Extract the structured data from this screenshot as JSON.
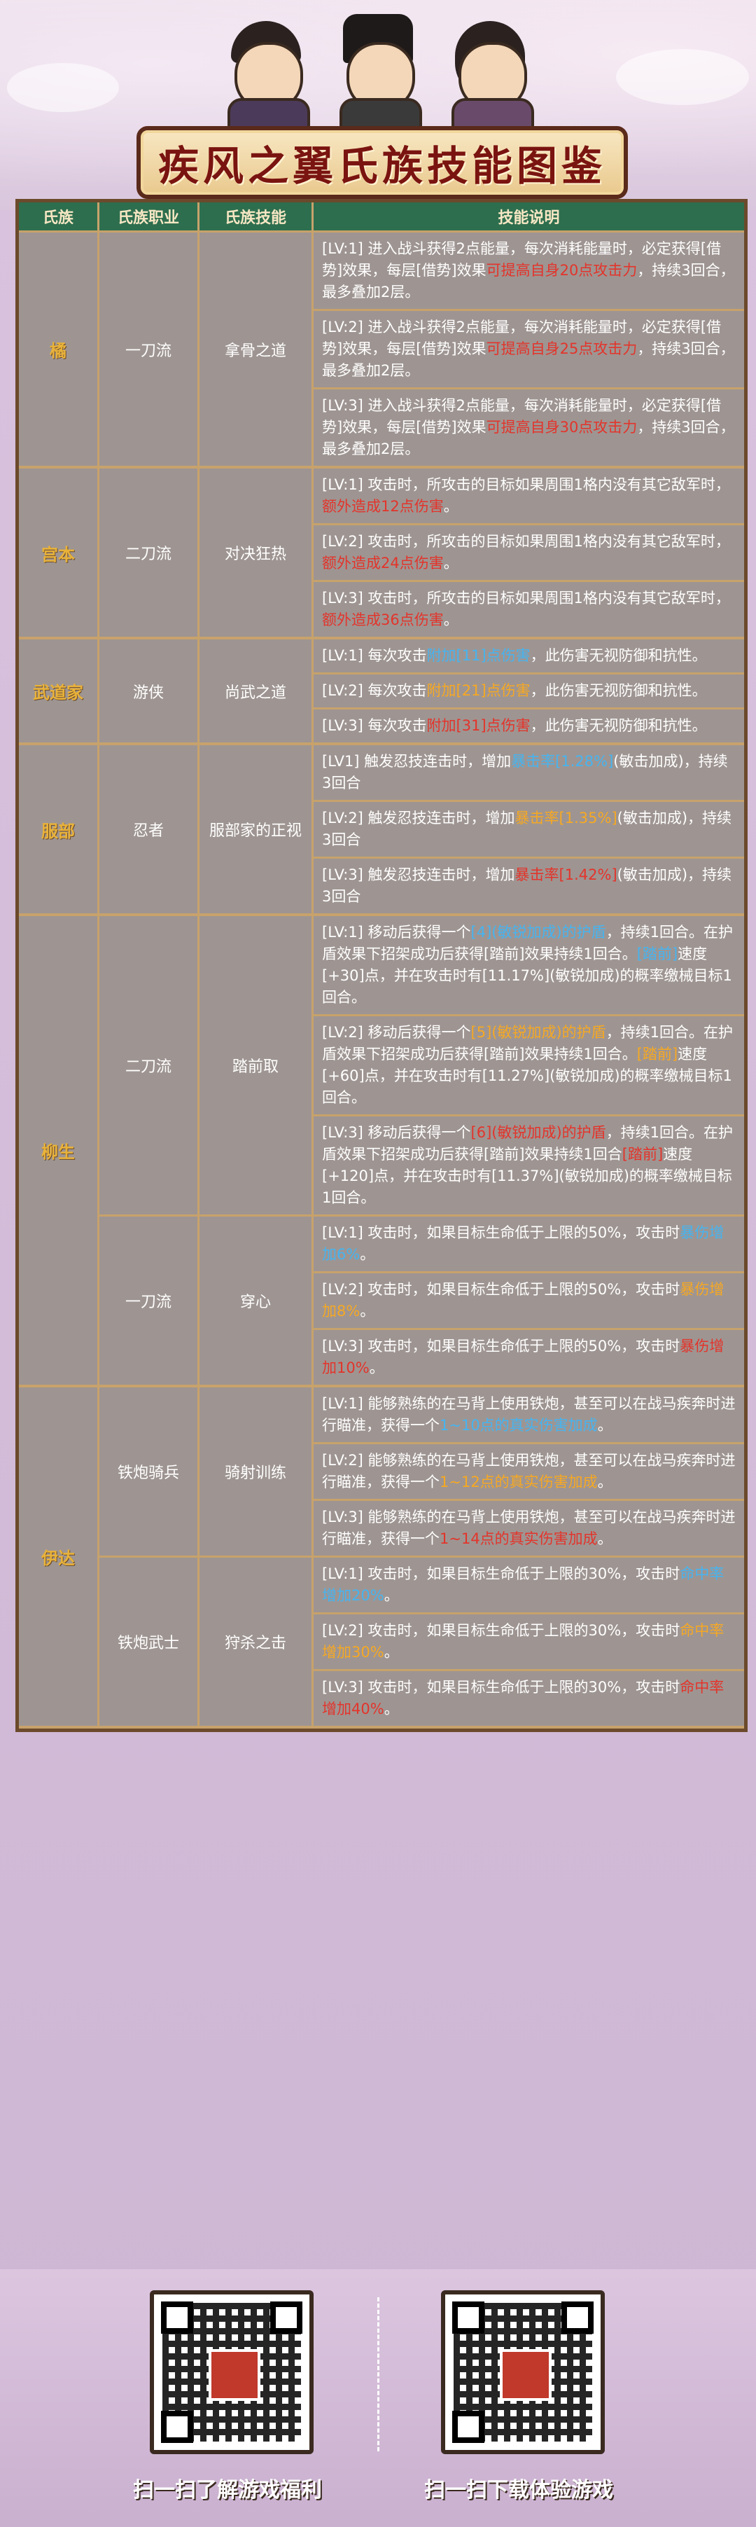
{
  "title": "疾风之翼氏族技能图鉴",
  "headers": [
    "氏族",
    "氏族职业",
    "氏族技能",
    "技能说明"
  ],
  "clans": [
    {
      "name": "橘",
      "groups": [
        {
          "job": "一刀流",
          "skill": "拿骨之道",
          "levels": [
            [
              {
                "t": "[LV:1] 进入战斗获得2点能量，每次消耗能量时，必定获得[借势]效果，每层[借势]效果"
              },
              {
                "t": "可提高自身20点攻击力",
                "c": "r"
              },
              {
                "t": "，持续3回合，最多叠加2层。"
              }
            ],
            [
              {
                "t": "[LV:2] 进入战斗获得2点能量，每次消耗能量时，必定获得[借势]效果，每层[借势]效果"
              },
              {
                "t": "可提高自身25点攻击力",
                "c": "r"
              },
              {
                "t": "，持续3回合，最多叠加2层。"
              }
            ],
            [
              {
                "t": "[LV:3] 进入战斗获得2点能量，每次消耗能量时，必定获得[借势]效果，每层[借势]效果"
              },
              {
                "t": "可提高自身30点攻击力",
                "c": "r"
              },
              {
                "t": "，持续3回合，最多叠加2层。"
              }
            ]
          ]
        }
      ]
    },
    {
      "name": "宫本",
      "groups": [
        {
          "job": "二刀流",
          "skill": "对决狂热",
          "levels": [
            [
              {
                "t": "[LV:1] 攻击时，所攻击的目标如果周围1格内没有其它敌军时，"
              },
              {
                "t": "额外造成12点伤害",
                "c": "r"
              },
              {
                "t": "。"
              }
            ],
            [
              {
                "t": "[LV:2] 攻击时，所攻击的目标如果周围1格内没有其它敌军时，"
              },
              {
                "t": "额外造成24点伤害",
                "c": "r"
              },
              {
                "t": "。"
              }
            ],
            [
              {
                "t": "[LV:3] 攻击时，所攻击的目标如果周围1格内没有其它敌军时，"
              },
              {
                "t": "额外造成36点伤害",
                "c": "r"
              },
              {
                "t": "。"
              }
            ]
          ]
        }
      ]
    },
    {
      "name": "武道家",
      "groups": [
        {
          "job": "游侠",
          "skill": "尚武之道",
          "levels": [
            [
              {
                "t": "[LV:1] 每次攻击"
              },
              {
                "t": "附加[11]点伤害",
                "c": "b"
              },
              {
                "t": "，此伤害无视防御和抗性。"
              }
            ],
            [
              {
                "t": "[LV:2] 每次攻击"
              },
              {
                "t": "附加[21]点伤害",
                "c": "o"
              },
              {
                "t": "，此伤害无视防御和抗性。"
              }
            ],
            [
              {
                "t": "[LV:3] 每次攻击"
              },
              {
                "t": "附加[31]点伤害",
                "c": "r"
              },
              {
                "t": "，此伤害无视防御和抗性。"
              }
            ]
          ]
        }
      ]
    },
    {
      "name": "服部",
      "groups": [
        {
          "job": "忍者",
          "skill": "服部家的正视",
          "levels": [
            [
              {
                "t": "[LV1] 触发忍技连击时，增加"
              },
              {
                "t": "暴击率[1.28%]",
                "c": "b"
              },
              {
                "t": "(敏击加成)，持续3回合"
              }
            ],
            [
              {
                "t": "[LV:2] 触发忍技连击时，增加"
              },
              {
                "t": "暴击率[1.35%]",
                "c": "o"
              },
              {
                "t": "(敏击加成)，持续3回合"
              }
            ],
            [
              {
                "t": "[LV:3] 触发忍技连击时，增加"
              },
              {
                "t": "暴击率[1.42%]",
                "c": "r"
              },
              {
                "t": "(敏击加成)，持续3回合"
              }
            ]
          ]
        }
      ]
    },
    {
      "name": "柳生",
      "groups": [
        {
          "job": "二刀流",
          "skill": "踏前取",
          "levels": [
            [
              {
                "t": "[LV:1] 移动后获得一个"
              },
              {
                "t": "[4](敏锐加成)的护盾",
                "c": "b"
              },
              {
                "t": "，持续1回合。在护盾效果下招架成功后获得[踏前]效果持续1回合。"
              },
              {
                "t": "[踏前]",
                "c": "b"
              },
              {
                "t": "速度[+30]点，并在攻击时有[11.17%](敏锐加成)的概率缴械目标1回合。"
              }
            ],
            [
              {
                "t": "[LV:2] 移动后获得一个"
              },
              {
                "t": "[5](敏锐加成)的护盾",
                "c": "o"
              },
              {
                "t": "，持续1回合。在护盾效果下招架成功后获得[踏前]效果持续1回合。"
              },
              {
                "t": "[踏前]",
                "c": "o"
              },
              {
                "t": "速度[+60]点，并在攻击时有[11.27%](敏锐加成)的概率缴械目标1回合。"
              }
            ],
            [
              {
                "t": "[LV:3] 移动后获得一个"
              },
              {
                "t": "[6](敏锐加成)的护盾",
                "c": "r"
              },
              {
                "t": "，持续1回合。在护盾效果下招架成功后获得[踏前]效果持续1回合"
              },
              {
                "t": "[踏前]",
                "c": "r"
              },
              {
                "t": "速度[+120]点，并在攻击时有[11.37%](敏锐加成)的概率缴械目标1回合。"
              }
            ]
          ]
        },
        {
          "job": "一刀流",
          "skill": "穿心",
          "levels": [
            [
              {
                "t": "[LV:1] 攻击时，如果目标生命低于上限的50%，攻击时"
              },
              {
                "t": "暴伤增加6%",
                "c": "b"
              },
              {
                "t": "。"
              }
            ],
            [
              {
                "t": "[LV:2] 攻击时，如果目标生命低于上限的50%，攻击时"
              },
              {
                "t": "暴伤增加8%",
                "c": "o"
              },
              {
                "t": "。"
              }
            ],
            [
              {
                "t": "[LV:3] 攻击时，如果目标生命低于上限的50%，攻击时"
              },
              {
                "t": "暴伤增加10%",
                "c": "r"
              },
              {
                "t": "。"
              }
            ]
          ]
        }
      ]
    },
    {
      "name": "伊达",
      "groups": [
        {
          "job": "铁炮骑兵",
          "skill": "骑射训练",
          "levels": [
            [
              {
                "t": "[LV:1] 能够熟练的在马背上使用铁炮，甚至可以在战马疾奔时进行瞄准，获得一个"
              },
              {
                "t": "1~10点的真实伤害加成",
                "c": "b"
              },
              {
                "t": "。"
              }
            ],
            [
              {
                "t": "[LV:2] 能够熟练的在马背上使用铁炮，甚至可以在战马疾奔时进行瞄准，获得一个"
              },
              {
                "t": "1~12点的真实伤害加成",
                "c": "o"
              },
              {
                "t": "。"
              }
            ],
            [
              {
                "t": "[LV:3] 能够熟练的在马背上使用铁炮，甚至可以在战马疾奔时进行瞄准，获得一个"
              },
              {
                "t": "1~14点的真实伤害加成",
                "c": "r"
              },
              {
                "t": "。"
              }
            ]
          ]
        },
        {
          "job": "铁炮武士",
          "skill": "狩杀之击",
          "levels": [
            [
              {
                "t": "[LV:1] 攻击时，如果目标生命低于上限的30%，攻击时"
              },
              {
                "t": "命中率增加20%",
                "c": "b"
              },
              {
                "t": "。"
              }
            ],
            [
              {
                "t": "[LV:2] 攻击时，如果目标生命低于上限的30%，攻击时"
              },
              {
                "t": "命中率增加30%",
                "c": "o"
              },
              {
                "t": "。"
              }
            ],
            [
              {
                "t": "[LV:3] 攻击时，如果目标生命低于上限的30%，攻击时"
              },
              {
                "t": "命中率增加40%",
                "c": "r"
              },
              {
                "t": "。"
              }
            ]
          ]
        }
      ]
    }
  ],
  "footer": {
    "left_label": "扫一扫了解游戏福利",
    "right_label": "扫一扫下载体验游戏"
  },
  "colors": {
    "red": "#e3342b",
    "blue": "#46b4f0",
    "orange": "#f6a823",
    "header_bg": "#2d6e4e"
  }
}
